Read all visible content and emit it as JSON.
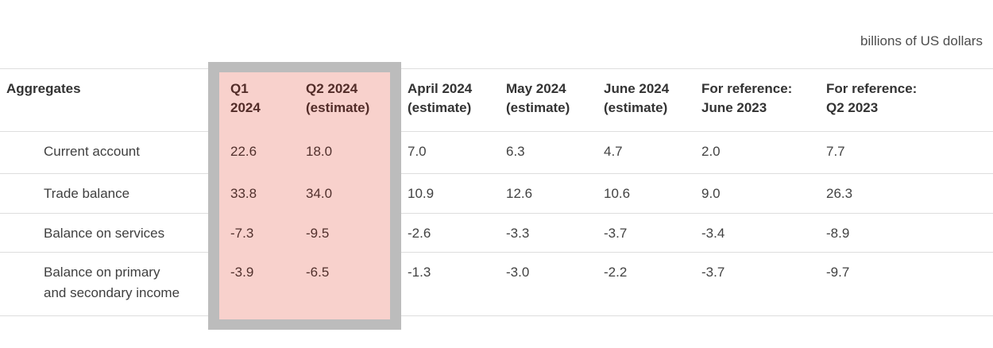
{
  "caption": "billions of US dollars",
  "highlight": {
    "covers_columns": [
      "Q1 2024",
      "Q2 2024 (estimate)"
    ],
    "fill_color": "#f8d1cc",
    "frame_color": "#bcbcbc"
  },
  "table": {
    "title_column_header": "Aggregates",
    "columns": [
      {
        "label": "Q1\n2024",
        "highlighted": true
      },
      {
        "label": "Q2 2024\n(estimate)",
        "highlighted": true
      },
      {
        "label": "April 2024\n(estimate)",
        "highlighted": false
      },
      {
        "label": "May 2024\n(estimate)",
        "highlighted": false
      },
      {
        "label": "June 2024\n(estimate)",
        "highlighted": false
      },
      {
        "label": "For reference:\nJune 2023",
        "highlighted": false
      },
      {
        "label": "For reference:\nQ2 2023",
        "highlighted": false
      }
    ],
    "rows": [
      {
        "label": "Current account",
        "values": [
          "22.6",
          "18.0",
          "7.0",
          "6.3",
          "4.7",
          "2.0",
          "7.7"
        ]
      },
      {
        "label": "Trade balance",
        "values": [
          "33.8",
          "34.0",
          "10.9",
          "12.6",
          "10.6",
          "9.0",
          "26.3"
        ]
      },
      {
        "label": "Balance on services",
        "values": [
          "-7.3",
          "-9.5",
          "-2.6",
          "-3.3",
          "-3.7",
          "-3.4",
          "-8.9"
        ]
      },
      {
        "label": "Balance on primary\nand secondary income",
        "values": [
          "-3.9",
          "-6.5",
          "-1.3",
          "-3.0",
          "-2.2",
          "-3.7",
          "-9.7"
        ]
      }
    ]
  }
}
